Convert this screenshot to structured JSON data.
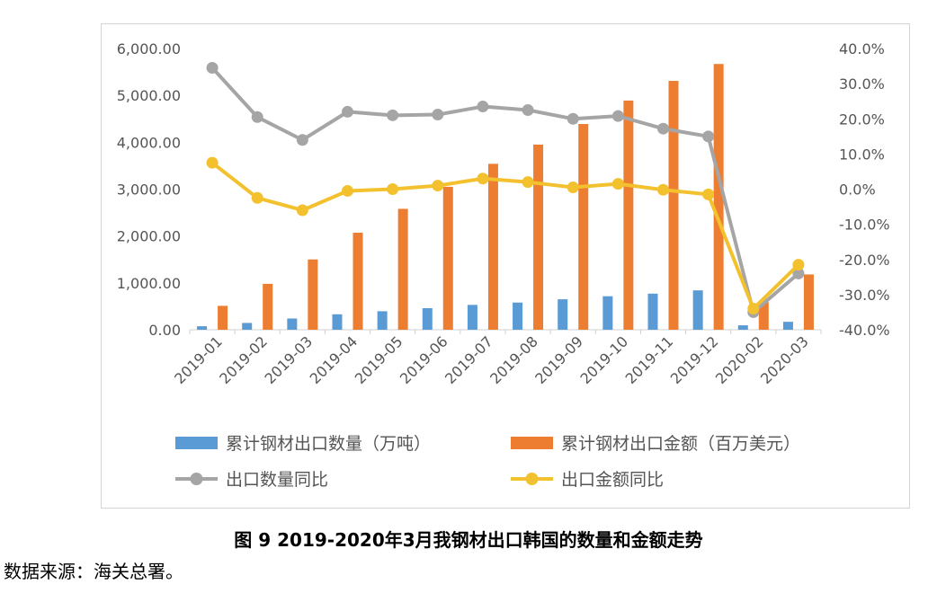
{
  "chart_data": {
    "type": "bar",
    "categories": [
      "2019-01",
      "2019-02",
      "2019-03",
      "2019-04",
      "2019-05",
      "2019-06",
      "2019-07",
      "2019-08",
      "2019-09",
      "2019-10",
      "2019-11",
      "2019-12",
      "2020-02",
      "2020-03"
    ],
    "series": [
      {
        "name": "累计钢材出口数量（万吨）",
        "kind": "bar",
        "axis": "left",
        "color": "#5b9bd5",
        "values": [
          75,
          145,
          240,
          330,
          395,
          460,
          530,
          580,
          650,
          715,
          770,
          840,
          95,
          170
        ]
      },
      {
        "name": "累计钢材出口金额（百万美元）",
        "kind": "bar",
        "axis": "left",
        "color": "#ed7d31",
        "values": [
          510,
          980,
          1500,
          2070,
          2580,
          3050,
          3540,
          3950,
          4390,
          4890,
          5310,
          5670,
          590,
          1180
        ]
      },
      {
        "name": "出口数量同比",
        "kind": "line",
        "axis": "right",
        "color": "#a5a5a5",
        "values": [
          34.5,
          20.5,
          14.0,
          22.0,
          21.0,
          21.2,
          23.5,
          22.5,
          20.0,
          20.8,
          17.2,
          15.0,
          -35.0,
          -24.0
        ]
      },
      {
        "name": "出口金额同比",
        "kind": "line",
        "axis": "right",
        "color": "#f4c12e",
        "values": [
          7.5,
          -2.5,
          -6.0,
          -0.5,
          0.0,
          1.0,
          3.0,
          2.0,
          0.5,
          1.5,
          -0.2,
          -1.5,
          -34.0,
          -21.5
        ]
      }
    ],
    "y_left": {
      "min": 0,
      "max": 6000,
      "ticks": [
        "0.00",
        "1,000.00",
        "2,000.00",
        "3,000.00",
        "4,000.00",
        "5,000.00",
        "6,000.00"
      ]
    },
    "y_right": {
      "min": -40,
      "max": 40,
      "ticks": [
        "-40.0%",
        "-30.0%",
        "-20.0%",
        "-10.0%",
        "0.0%",
        "10.0%",
        "20.0%",
        "30.0%",
        "40.0%"
      ]
    },
    "grid": false,
    "legend_placement": "bottom"
  },
  "caption": "图 9 2019-2020年3月我钢材出口韩国的数量和金额走势",
  "source": "数据来源：海关总署。"
}
